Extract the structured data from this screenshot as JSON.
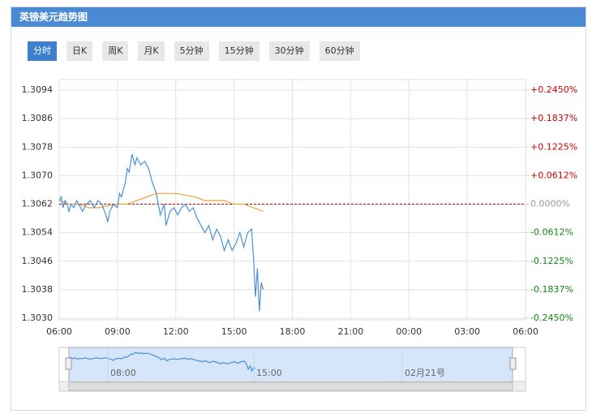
{
  "header": {
    "title": "英镑美元趋势图"
  },
  "tabs": [
    "分时",
    "日K",
    "周K",
    "月K",
    "5分钟",
    "15分钟",
    "30分钟",
    "60分钟"
  ],
  "active_tab": 0,
  "chart_data": {
    "type": "line",
    "xlim": [
      6,
      30
    ],
    "xticks": [
      {
        "value": 6,
        "label": "06:00"
      },
      {
        "value": 9,
        "label": "09:00"
      },
      {
        "value": 12,
        "label": "12:00"
      },
      {
        "value": 15,
        "label": "15:00"
      },
      {
        "value": 18,
        "label": "18:00"
      },
      {
        "value": 21,
        "label": "21:00"
      },
      {
        "value": 24,
        "label": "00:00"
      },
      {
        "value": 27,
        "label": "03:00"
      },
      {
        "value": 30,
        "label": "06:00"
      }
    ],
    "ylim": [
      1.303,
      1.3094
    ],
    "yticks": [
      {
        "value": 1.303,
        "label": "1.3030"
      },
      1.3038,
      1.3046,
      1.3054,
      1.3062,
      {
        "value": 1.307,
        "label": "1.3070"
      },
      1.3078,
      1.3086,
      1.3094
    ],
    "y2lim": [
      -0.245,
      0.245
    ],
    "y2ticks": [
      {
        "value": -0.245,
        "label": "-0.2450%"
      },
      {
        "value": -0.1837,
        "label": "-0.1837%"
      },
      {
        "value": -0.1225,
        "label": "-0.1225%"
      },
      {
        "value": -0.0612,
        "label": "-0.0612%"
      },
      {
        "value": 0,
        "label": "0.0000%"
      },
      {
        "value": 0.0612,
        "label": "+0.0612%"
      },
      {
        "value": 0.1225,
        "label": "+0.1225%"
      },
      {
        "value": 0.1837,
        "label": "+0.1837%"
      },
      {
        "value": 0.245,
        "label": "+0.2450%"
      }
    ],
    "baseline": 1.3062,
    "baseline_color": "#cc0000",
    "grid": true,
    "series": [
      {
        "color": "#4a90d9",
        "x": [
          6.0,
          6.1,
          6.2,
          6.3,
          6.4,
          6.5,
          6.6,
          6.75,
          6.9,
          7.0,
          7.2,
          7.4,
          7.6,
          7.8,
          8.0,
          8.2,
          8.4,
          8.5,
          8.6,
          8.8,
          9.0,
          9.1,
          9.2,
          9.4,
          9.5,
          9.6,
          9.75,
          9.9,
          10.0,
          10.2,
          10.4,
          10.6,
          10.8,
          11.0,
          11.2,
          11.4,
          11.5,
          11.7,
          11.9,
          12.1,
          12.3,
          12.5,
          12.7,
          12.9,
          13.1,
          13.3,
          13.5,
          13.7,
          13.9,
          14.1,
          14.3,
          14.5,
          14.7,
          14.9,
          15.1,
          15.3,
          15.5,
          15.7,
          15.9,
          16.0,
          16.1,
          16.2,
          16.3,
          16.4,
          16.5
        ],
        "values": [
          1.3063,
          1.3064,
          1.3061,
          1.3063,
          1.3062,
          1.306,
          1.3062,
          1.3061,
          1.3063,
          1.3062,
          1.306,
          1.3062,
          1.3063,
          1.3061,
          1.3063,
          1.3062,
          1.3059,
          1.3057,
          1.306,
          1.3062,
          1.3061,
          1.3065,
          1.3064,
          1.3068,
          1.3072,
          1.3071,
          1.3076,
          1.3073,
          1.3075,
          1.3073,
          1.3074,
          1.3072,
          1.3068,
          1.3065,
          1.3059,
          1.3062,
          1.3056,
          1.306,
          1.3061,
          1.3059,
          1.3061,
          1.3062,
          1.306,
          1.3061,
          1.3058,
          1.3056,
          1.3054,
          1.3056,
          1.3052,
          1.3055,
          1.3053,
          1.3049,
          1.3052,
          1.3049,
          1.3051,
          1.3054,
          1.305,
          1.3054,
          1.3055,
          1.3047,
          1.3036,
          1.3044,
          1.3032,
          1.304,
          1.3038
        ]
      },
      {
        "color": "#e8a33d",
        "x": [
          6.0,
          6.5,
          7.0,
          7.5,
          8.0,
          9.0,
          9.5,
          10.0,
          10.5,
          11.0,
          12.0,
          13.0,
          13.5,
          14.5,
          15.0,
          15.5,
          16.0,
          16.5
        ],
        "values": [
          1.3063,
          1.3062,
          1.3062,
          1.3061,
          1.3061,
          1.3062,
          1.3062,
          1.3063,
          1.3064,
          1.3065,
          1.3065,
          1.3064,
          1.3063,
          1.3063,
          1.3062,
          1.3062,
          1.3061,
          1.306
        ]
      }
    ],
    "navigator": {
      "labels": [
        "08:00",
        "15:00",
        "02月21号"
      ]
    }
  }
}
